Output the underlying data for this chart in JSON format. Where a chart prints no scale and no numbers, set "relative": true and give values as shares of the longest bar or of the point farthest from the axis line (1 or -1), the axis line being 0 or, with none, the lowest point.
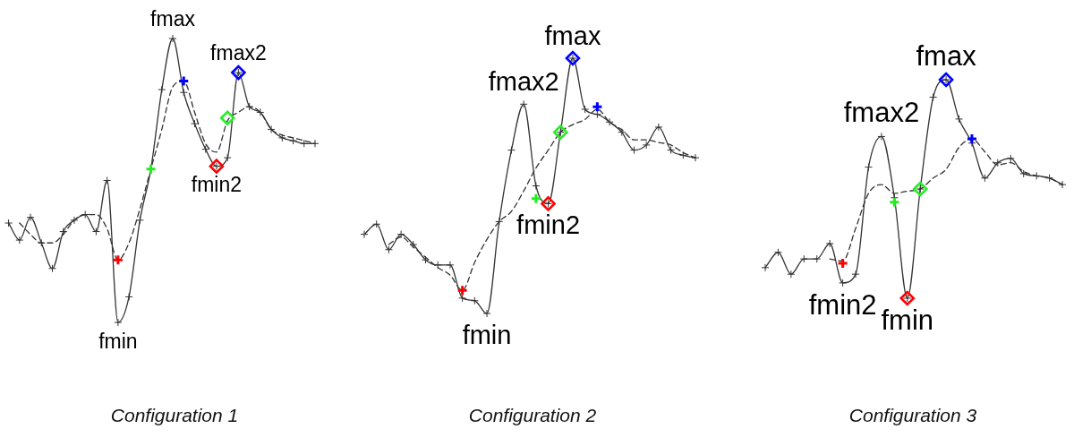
{
  "chart_data": [
    {
      "type": "line",
      "title": "Configuration 1",
      "relative": true,
      "tick_labels": false,
      "categories": [
        null,
        null,
        null,
        null,
        null,
        null,
        null,
        null,
        null,
        null,
        null,
        null,
        null,
        null,
        null,
        null,
        null,
        null,
        null,
        null,
        null,
        null,
        null,
        null,
        null,
        null,
        null,
        null,
        null
      ],
      "series": [
        {
          "color": "#333333",
          "marker": "cross",
          "line_style": "solid",
          "values": [
            0.35,
            0.29,
            0.37,
            0.28,
            0.19,
            0.32,
            0.36,
            0.38,
            0.32,
            0.5,
            0,
            0.09,
            0.36,
            0.54,
            0.82,
            1,
            0.81,
            0.7,
            0.61,
            0.55,
            0.58,
            0.88,
            0.76,
            0.74,
            0.68,
            0.65,
            0.64,
            0.63,
            0.63
          ]
        },
        {
          "color": "#333333",
          "marker": "none",
          "line_style": "dashed",
          "values": [
            null,
            0.35,
            0.31,
            0.28,
            0.28,
            0.31,
            0.36,
            0.38,
            0.38,
            0.33,
            0.22,
            0.28,
            0.4,
            0.54,
            0.68,
            0.83,
            0.85,
            0.74,
            0.63,
            0.6,
            0.71,
            0.74,
            0.76,
            0.74,
            0.68,
            0.66,
            0.65,
            0.64,
            0.63
          ]
        },
        {
          "color": "#ff0000",
          "marker": "cross",
          "values": [
            null,
            null,
            null,
            null,
            null,
            null,
            null,
            null,
            null,
            null,
            0.22,
            null,
            null,
            null,
            null,
            null,
            null,
            null,
            null,
            null,
            null,
            null,
            null,
            null,
            null,
            null,
            null,
            null,
            null
          ]
        },
        {
          "color": "#22ee22",
          "marker": "cross",
          "values": [
            null,
            null,
            null,
            null,
            null,
            null,
            null,
            null,
            null,
            null,
            null,
            null,
            null,
            0.54,
            null,
            null,
            null,
            null,
            null,
            null,
            null,
            null,
            null,
            null,
            null,
            null,
            null,
            null,
            null
          ]
        },
        {
          "color": "#0000ff",
          "marker": "cross",
          "values": [
            null,
            null,
            null,
            null,
            null,
            null,
            null,
            null,
            null,
            null,
            null,
            null,
            null,
            null,
            null,
            null,
            0.85,
            null,
            null,
            null,
            null,
            null,
            null,
            null,
            null,
            null,
            null,
            null,
            null
          ]
        },
        {
          "color": "#ff0000",
          "marker": "diamond",
          "values": [
            null,
            null,
            null,
            null,
            null,
            null,
            null,
            null,
            null,
            null,
            null,
            null,
            null,
            null,
            null,
            null,
            null,
            null,
            null,
            0.55,
            null,
            null,
            null,
            null,
            null,
            null,
            null,
            null,
            null
          ]
        },
        {
          "color": "#22ee22",
          "marker": "diamond",
          "values": [
            null,
            null,
            null,
            null,
            null,
            null,
            null,
            null,
            null,
            null,
            null,
            null,
            null,
            null,
            null,
            null,
            null,
            null,
            null,
            null,
            0.72,
            null,
            null,
            null,
            null,
            null,
            null,
            null,
            null
          ]
        },
        {
          "color": "#0000ff",
          "marker": "diamond",
          "values": [
            null,
            null,
            null,
            null,
            null,
            null,
            null,
            null,
            null,
            null,
            null,
            null,
            null,
            null,
            null,
            null,
            null,
            null,
            null,
            null,
            null,
            0.88,
            null,
            null,
            null,
            null,
            null,
            null,
            null
          ]
        }
      ],
      "annotations": [
        {
          "text": "fmax",
          "y": 1
        },
        {
          "text": "fmax2",
          "y": 0.88
        },
        {
          "text": "fmin2",
          "y": 0.55
        },
        {
          "text": "fmin",
          "y": 0
        }
      ]
    },
    {
      "type": "line",
      "title": "Configuration 2",
      "relative": true,
      "tick_labels": false,
      "categories": [
        null,
        null,
        null,
        null,
        null,
        null,
        null,
        null,
        null,
        null,
        null,
        null,
        null,
        null,
        null,
        null,
        null,
        null,
        null,
        null,
        null,
        null,
        null,
        null,
        null,
        null,
        null,
        null
      ],
      "series": [
        {
          "color": "#333333",
          "marker": "cross",
          "line_style": "solid",
          "values": [
            0.31,
            0.35,
            0.25,
            0.31,
            0.27,
            0.21,
            0.19,
            0.19,
            0.06,
            0.05,
            0,
            0.36,
            0.64,
            0.82,
            0.5,
            0.43,
            0.71,
            1,
            0.8,
            0.78,
            0.75,
            0.71,
            0.64,
            0.66,
            0.73,
            0.64,
            0.62,
            0.61
          ]
        },
        {
          "color": "#333333",
          "marker": "none",
          "line_style": "dashed",
          "values": [
            null,
            null,
            0.27,
            0.3,
            0.26,
            0.22,
            0.18,
            0.15,
            0.09,
            0.2,
            0.29,
            0.36,
            0.4,
            0.48,
            0.57,
            0.64,
            0.71,
            0.74,
            0.76,
            0.8,
            0.75,
            0.72,
            0.68,
            0.68,
            0.67,
            0.66,
            0.63,
            0.61
          ]
        },
        {
          "color": "#ff0000",
          "marker": "cross",
          "values": [
            null,
            null,
            null,
            null,
            null,
            null,
            null,
            null,
            0.09,
            null,
            null,
            null,
            null,
            null,
            null,
            null,
            null,
            null,
            null,
            null,
            null,
            null,
            null,
            null,
            null,
            null,
            null,
            null
          ]
        },
        {
          "color": "#22ee22",
          "marker": "cross",
          "values": [
            null,
            null,
            null,
            null,
            null,
            null,
            null,
            null,
            null,
            null,
            null,
            null,
            null,
            null,
            0.45,
            null,
            null,
            null,
            null,
            null,
            null,
            null,
            null,
            null,
            null,
            null,
            null,
            null
          ]
        },
        {
          "color": "#0000ff",
          "marker": "cross",
          "values": [
            null,
            null,
            null,
            null,
            null,
            null,
            null,
            null,
            null,
            null,
            null,
            null,
            null,
            null,
            null,
            null,
            null,
            null,
            null,
            0.81,
            null,
            null,
            null,
            null,
            null,
            null,
            null,
            null
          ]
        },
        {
          "color": "#ff0000",
          "marker": "diamond",
          "values": [
            null,
            null,
            null,
            null,
            null,
            null,
            null,
            null,
            null,
            null,
            null,
            null,
            null,
            null,
            null,
            0.43,
            null,
            null,
            null,
            null,
            null,
            null,
            null,
            null,
            null,
            null,
            null,
            null
          ]
        },
        {
          "color": "#22ee22",
          "marker": "diamond",
          "values": [
            null,
            null,
            null,
            null,
            null,
            null,
            null,
            null,
            null,
            null,
            null,
            null,
            null,
            null,
            null,
            null,
            0.71,
            null,
            null,
            null,
            null,
            null,
            null,
            null,
            null,
            null,
            null,
            null
          ]
        },
        {
          "color": "#0000ff",
          "marker": "diamond",
          "values": [
            null,
            null,
            null,
            null,
            null,
            null,
            null,
            null,
            null,
            null,
            null,
            null,
            null,
            null,
            null,
            null,
            null,
            1,
            null,
            null,
            null,
            null,
            null,
            null,
            null,
            null,
            null,
            null
          ]
        }
      ],
      "annotations": [
        {
          "text": "fmax2",
          "y": 0.82
        },
        {
          "text": "fmax",
          "y": 1
        },
        {
          "text": "fmin2",
          "y": 0.43
        },
        {
          "text": "fmin",
          "y": 0
        }
      ]
    },
    {
      "type": "line",
      "title": "Configuration 3",
      "relative": true,
      "tick_labels": false,
      "categories": [
        null,
        null,
        null,
        null,
        null,
        null,
        null,
        null,
        null,
        null,
        null,
        null,
        null,
        null,
        null,
        null,
        null,
        null,
        null,
        null,
        null,
        null,
        null,
        null
      ],
      "series": [
        {
          "color": "#333333",
          "marker": "cross",
          "line_style": "solid",
          "values": [
            0.14,
            0.21,
            0.11,
            0.18,
            0.18,
            0.25,
            0.07,
            0.11,
            0.6,
            0.74,
            0.46,
            0,
            0.5,
            0.92,
            1,
            0.82,
            0.71,
            0.55,
            0.62,
            0.64,
            0.57,
            0.56,
            0.55,
            0.52
          ]
        },
        {
          "color": "#333333",
          "marker": "none",
          "line_style": "dashed",
          "values": [
            null,
            null,
            null,
            null,
            null,
            0.18,
            0.17,
            0.32,
            0.48,
            0.52,
            0.48,
            0.49,
            0.5,
            0.55,
            0.59,
            0.69,
            0.73,
            0.67,
            0.61,
            0.62,
            0.58,
            0.56,
            0.55,
            0.52
          ]
        },
        {
          "color": "#ff0000",
          "marker": "cross",
          "values": [
            null,
            null,
            null,
            null,
            null,
            null,
            0.16,
            null,
            null,
            null,
            null,
            null,
            null,
            null,
            null,
            null,
            null,
            null,
            null,
            null,
            null,
            null,
            null,
            null
          ]
        },
        {
          "color": "#22ee22",
          "marker": "cross",
          "values": [
            null,
            null,
            null,
            null,
            null,
            null,
            null,
            null,
            null,
            null,
            0.44,
            null,
            null,
            null,
            null,
            null,
            null,
            null,
            null,
            null,
            null,
            null,
            null,
            null
          ]
        },
        {
          "color": "#0000ff",
          "marker": "cross",
          "values": [
            null,
            null,
            null,
            null,
            null,
            null,
            null,
            null,
            null,
            null,
            null,
            null,
            null,
            null,
            null,
            null,
            0.73,
            null,
            null,
            null,
            null,
            null,
            null,
            null
          ]
        },
        {
          "color": "#ff0000",
          "marker": "diamond",
          "values": [
            null,
            null,
            null,
            null,
            null,
            null,
            null,
            null,
            null,
            null,
            null,
            0,
            null,
            null,
            null,
            null,
            null,
            null,
            null,
            null,
            null,
            null,
            null,
            null
          ]
        },
        {
          "color": "#22ee22",
          "marker": "diamond",
          "values": [
            null,
            null,
            null,
            null,
            null,
            null,
            null,
            null,
            null,
            null,
            null,
            null,
            0.5,
            null,
            null,
            null,
            null,
            null,
            null,
            null,
            null,
            null,
            null,
            null
          ]
        },
        {
          "color": "#0000ff",
          "marker": "diamond",
          "values": [
            null,
            null,
            null,
            null,
            null,
            null,
            null,
            null,
            null,
            null,
            null,
            null,
            null,
            null,
            1,
            null,
            null,
            null,
            null,
            null,
            null,
            null,
            null,
            null
          ]
        }
      ],
      "annotations": [
        {
          "text": "fmax2",
          "y": 0.74
        },
        {
          "text": "fmax",
          "y": 1
        },
        {
          "text": "fmin2",
          "y": 0.07
        },
        {
          "text": "fmin",
          "y": 0
        }
      ]
    }
  ]
}
